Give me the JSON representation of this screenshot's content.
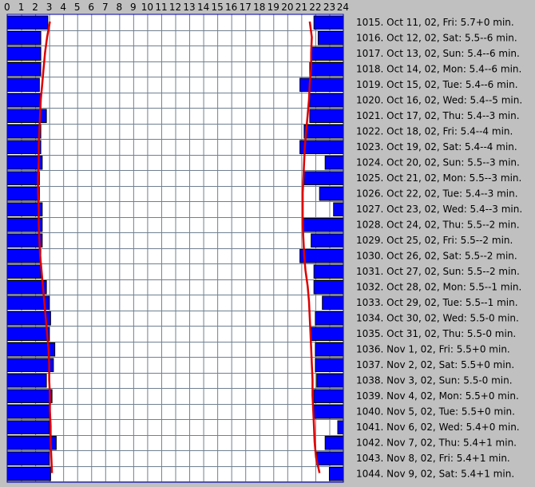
{
  "chart_data": {
    "type": "bar",
    "x_axis": {
      "ticks": [
        "0",
        "1",
        "2",
        "3",
        "4",
        "5",
        "6",
        "7",
        "8",
        "9",
        "10",
        "11",
        "12",
        "13",
        "14",
        "15",
        "16",
        "17",
        "18",
        "19",
        "20",
        "21",
        "22",
        "23",
        "24"
      ],
      "range": [
        0,
        24
      ]
    },
    "grid": true,
    "colors": {
      "bar": "#0000ff",
      "bar_outline": "#000000",
      "curve": "#dd0000",
      "plot_bg": "#ffffff",
      "grid": "#708090",
      "page_bg": "#c0c0c0"
    },
    "rows": [
      {
        "label": "1015. Oct 11, 02, Fri: 5.7+0 min.",
        "sleep_end": 2.9,
        "sleep_start": 21.9,
        "curve_end": 3.05,
        "curve_start": 21.6
      },
      {
        "label": "1016. Oct 12, 02, Sat: 5.5--6 min.",
        "sleep_end": 2.4,
        "sleep_start": 22.2,
        "curve_end": 2.85,
        "curve_start": 21.75
      },
      {
        "label": "1017. Oct 13, 02, Sun: 5.4--6 min.",
        "sleep_end": 2.4,
        "sleep_start": 21.7,
        "curve_end": 2.7,
        "curve_start": 21.7
      },
      {
        "label": "1018. Oct 14, 02, Mon: 5.4--6 min.",
        "sleep_end": 2.4,
        "sleep_start": 21.6,
        "curve_end": 2.6,
        "curve_start": 21.7
      },
      {
        "label": "1019. Oct 15, 02, Tue: 5.4--6 min.",
        "sleep_end": 2.3,
        "sleep_start": 20.9,
        "curve_end": 2.5,
        "curve_start": 21.6
      },
      {
        "label": "1020. Oct 16, 02, Wed: 5.4--5 min.",
        "sleep_end": 2.4,
        "sleep_start": 21.6,
        "curve_end": 2.4,
        "curve_start": 21.55
      },
      {
        "label": "1021. Oct 17, 02, Thu: 5.4--3 min.",
        "sleep_end": 2.8,
        "sleep_start": 21.6,
        "curve_end": 2.35,
        "curve_start": 21.45
      },
      {
        "label": "1022. Oct 18, 02, Fri: 5.4--4 min.",
        "sleep_end": 2.4,
        "sleep_start": 21.2,
        "curve_end": 2.3,
        "curve_start": 21.35
      },
      {
        "label": "1023. Oct 19, 02, Sat: 5.4--4 min.",
        "sleep_end": 2.4,
        "sleep_start": 20.9,
        "curve_end": 2.25,
        "curve_start": 21.25
      },
      {
        "label": "1024. Oct 20, 02, Sun: 5.5--3 min.",
        "sleep_end": 2.5,
        "sleep_start": 22.7,
        "curve_end": 2.25,
        "curve_start": 21.2
      },
      {
        "label": "1025. Oct 21, 02, Mon: 5.5--3 min.",
        "sleep_end": 2.3,
        "sleep_start": 21.2,
        "curve_end": 2.2,
        "curve_start": 21.15
      },
      {
        "label": "1026. Oct 22, 02, Tue: 5.4--3 min.",
        "sleep_end": 2.3,
        "sleep_start": 22.3,
        "curve_end": 2.2,
        "curve_start": 21.1
      },
      {
        "label": "1027. Oct 23, 02, Wed: 5.4--3 min.",
        "sleep_end": 2.5,
        "sleep_start": 23.3,
        "curve_end": 2.25,
        "curve_start": 21.1
      },
      {
        "label": "1028. Oct 24, 02, Thu: 5.5--2 min.",
        "sleep_end": 2.5,
        "sleep_start": 21.1,
        "curve_end": 2.25,
        "curve_start": 21.1
      },
      {
        "label": "1029. Oct 25, 02, Fri: 5.5--2 min.",
        "sleep_end": 2.5,
        "sleep_start": 21.7,
        "curve_end": 2.3,
        "curve_start": 21.15
      },
      {
        "label": "1030. Oct 26, 02, Sat: 5.5--2 min.",
        "sleep_end": 2.4,
        "sleep_start": 20.9,
        "curve_end": 2.35,
        "curve_start": 21.2
      },
      {
        "label": "1031. Oct 27, 02, Sun: 5.5--2 min.",
        "sleep_end": 2.4,
        "sleep_start": 21.9,
        "curve_end": 2.45,
        "curve_start": 21.3
      },
      {
        "label": "1032. Oct 28, 02, Mon: 5.5--1 min.",
        "sleep_end": 2.8,
        "sleep_start": 21.9,
        "curve_end": 2.55,
        "curve_start": 21.45
      },
      {
        "label": "1033. Oct 29, 02, Tue: 5.5--1 min.",
        "sleep_end": 3.0,
        "sleep_start": 22.5,
        "curve_end": 2.65,
        "curve_start": 21.55
      },
      {
        "label": "1034. Oct 30, 02, Wed: 5.5-0 min.",
        "sleep_end": 3.1,
        "sleep_start": 22.0,
        "curve_end": 2.75,
        "curve_start": 21.6
      },
      {
        "label": "1035. Oct 31, 02, Thu: 5.5-0 min.",
        "sleep_end": 3.0,
        "sleep_start": 21.7,
        "curve_end": 2.85,
        "curve_start": 21.65
      },
      {
        "label": "1036. Nov 1, 02, Fri: 5.5+0 min.",
        "sleep_end": 3.4,
        "sleep_start": 22.0,
        "curve_end": 2.95,
        "curve_start": 21.7
      },
      {
        "label": "1037. Nov 2, 02, Sat: 5.5+0 min.",
        "sleep_end": 3.3,
        "sleep_start": 22.0,
        "curve_end": 3.0,
        "curve_start": 21.75
      },
      {
        "label": "1038. Nov 3, 02, Sun: 5.5-0 min.",
        "sleep_end": 2.8,
        "sleep_start": 22.1,
        "curve_end": 3.0,
        "curve_start": 21.8
      },
      {
        "label": "1039. Nov 4, 02, Mon: 5.5+0 min.",
        "sleep_end": 3.2,
        "sleep_start": 21.9,
        "curve_end": 3.05,
        "curve_start": 21.8
      },
      {
        "label": "1040. Nov 5, 02, Tue: 5.5+0 min.",
        "sleep_end": 3.0,
        "sleep_start": 21.9,
        "curve_end": 3.05,
        "curve_start": 21.85
      },
      {
        "label": "1041. Nov 6, 02, Wed: 5.4+0 min.",
        "sleep_end": 3.0,
        "sleep_start": 23.6,
        "curve_end": 3.1,
        "curve_start": 21.9
      },
      {
        "label": "1042. Nov 7, 02, Thu: 5.4+1 min.",
        "sleep_end": 3.5,
        "sleep_start": 22.7,
        "curve_end": 3.1,
        "curve_start": 21.95
      },
      {
        "label": "1043. Nov 8, 02, Fri: 5.4+1 min.",
        "sleep_end": 3.0,
        "sleep_start": 22.1,
        "curve_end": 3.15,
        "curve_start": 22.05
      },
      {
        "label": "1044. Nov 9, 02, Sat: 5.4+1 min.",
        "sleep_end": 3.1,
        "sleep_start": 23.0,
        "curve_end": 3.2,
        "curve_start": 22.3
      }
    ]
  }
}
